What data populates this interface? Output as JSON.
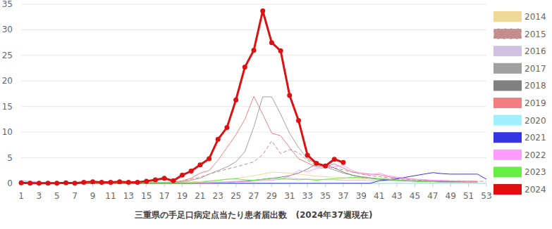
{
  "chart_data": {
    "type": "line",
    "title": "三重県の手足口病定点当たり患者届出数　(2024年37週現在)",
    "x": [
      1,
      2,
      3,
      4,
      5,
      6,
      7,
      8,
      9,
      10,
      11,
      12,
      13,
      14,
      15,
      16,
      17,
      18,
      19,
      20,
      21,
      22,
      23,
      24,
      25,
      26,
      27,
      28,
      29,
      30,
      31,
      32,
      33,
      34,
      35,
      36,
      37,
      38,
      39,
      40,
      41,
      42,
      43,
      44,
      45,
      46,
      47,
      48,
      49,
      50,
      51,
      52,
      53
    ],
    "xlim": [
      1,
      53
    ],
    "xticks": [
      1,
      3,
      5,
      7,
      9,
      11,
      13,
      15,
      17,
      19,
      21,
      23,
      25,
      27,
      29,
      31,
      33,
      35,
      37,
      39,
      41,
      43,
      45,
      47,
      49,
      51,
      53
    ],
    "ylim": [
      0,
      35
    ],
    "yticks": [
      0,
      5,
      10,
      15,
      20,
      25,
      30,
      35
    ],
    "grid": true,
    "legend": "right",
    "series": [
      {
        "name": "2014",
        "color": "#f0d898",
        "values": [
          0.2,
          0.2,
          0.1,
          0.1,
          0.1,
          0.1,
          0.1,
          0.1,
          0.1,
          0.1,
          0.1,
          0.1,
          0.1,
          0.1,
          0.1,
          0.2,
          0.2,
          0.2,
          0.3,
          0.3,
          0.4,
          0.5,
          0.6,
          0.8,
          1.0,
          1.2,
          1.5,
          1.8,
          2.2,
          2.1,
          2.0,
          1.8,
          1.6,
          1.4,
          1.3,
          1.2,
          1.1,
          1.0,
          0.9,
          0.8,
          0.7,
          0.6,
          0.6,
          0.5,
          0.5,
          0.4,
          0.4,
          0.4,
          0.3,
          0.3,
          0.3,
          0.3,
          null
        ]
      },
      {
        "name": "2015",
        "color": "#c48e8e",
        "line_style": "dashed",
        "values": [
          0.2,
          0.2,
          0.1,
          0.1,
          0.1,
          0.1,
          0.1,
          0.1,
          0.1,
          0.1,
          0.1,
          0.1,
          0.1,
          0.1,
          0.2,
          0.2,
          0.2,
          0.3,
          0.5,
          0.8,
          1.2,
          1.8,
          2.3,
          2.8,
          3.2,
          3.7,
          4.2,
          5.6,
          8.3,
          5.8,
          6.6,
          6.0,
          4.5,
          3.5,
          3.3,
          3.0,
          2.6,
          2.2,
          1.8,
          1.5,
          1.3,
          1.1,
          0.9,
          0.8,
          0.7,
          0.6,
          0.6,
          0.5,
          0.5,
          0.5,
          0.4,
          0.4,
          0.4
        ]
      },
      {
        "name": "2016",
        "color": "#d2c0e2",
        "values": [
          0.3,
          0.3,
          0.2,
          0.2,
          0.2,
          0.2,
          0.2,
          0.1,
          0.1,
          0.1,
          0.1,
          0.1,
          0.1,
          0.1,
          0.1,
          0.1,
          0.1,
          0.1,
          0.1,
          0.1,
          0.2,
          0.2,
          0.3,
          0.3,
          0.4,
          0.5,
          0.6,
          0.7,
          0.8,
          0.9,
          1.0,
          0.9,
          0.8,
          0.8,
          0.7,
          0.7,
          0.6,
          0.6,
          0.6,
          0.5,
          0.5,
          0.5,
          0.5,
          0.4,
          0.4,
          0.4,
          0.4,
          0.3,
          0.3,
          0.3,
          0.3,
          0.3,
          null
        ]
      },
      {
        "name": "2017",
        "color": "#a0a0a0",
        "values": [
          0.1,
          0.1,
          0.1,
          0.1,
          0.1,
          0.1,
          0.1,
          0.1,
          0.1,
          0.1,
          0.1,
          0.1,
          0.1,
          0.1,
          0.1,
          0.1,
          0.1,
          0.1,
          0.3,
          0.6,
          1.0,
          1.8,
          2.5,
          3.2,
          4.2,
          6.2,
          11.0,
          16.9,
          16.9,
          13.5,
          9.8,
          7.0,
          4.8,
          3.8,
          3.2,
          2.6,
          2.0,
          1.6,
          1.3,
          1.1,
          0.9,
          0.8,
          0.7,
          0.6,
          0.5,
          0.5,
          0.4,
          0.4,
          0.3,
          0.3,
          0.2,
          0.2,
          null
        ]
      },
      {
        "name": "2018",
        "color": "#808080",
        "values": [
          0.1,
          0.1,
          0.1,
          0.1,
          0.1,
          0.1,
          0.1,
          0.1,
          0.1,
          0.1,
          0.1,
          0.1,
          0.1,
          0.1,
          0.1,
          0.1,
          0.1,
          0.1,
          0.1,
          0.1,
          0.1,
          0.1,
          0.2,
          0.2,
          0.3,
          0.4,
          0.6,
          0.8,
          1.0,
          1.2,
          1.5,
          2.0,
          2.8,
          3.8,
          3.6,
          3.0,
          2.2,
          1.6,
          1.2,
          1.0,
          0.8,
          0.7,
          0.6,
          0.5,
          0.5,
          0.4,
          0.4,
          0.3,
          0.3,
          0.3,
          0.2,
          0.2,
          null
        ]
      },
      {
        "name": "2019",
        "color": "#f28080",
        "values": [
          0.1,
          0.1,
          0.1,
          0.1,
          0.1,
          0.1,
          0.1,
          0.1,
          0.1,
          0.1,
          0.1,
          0.1,
          0.1,
          0.1,
          0.1,
          0.1,
          0.1,
          0.2,
          0.5,
          1.0,
          2.0,
          2.5,
          4.5,
          7.0,
          9.5,
          12.5,
          17.0,
          13.5,
          9.8,
          9.3,
          7.0,
          4.8,
          4.0,
          3.2,
          3.2,
          3.8,
          3.0,
          2.2,
          2.0,
          1.8,
          1.7,
          1.3,
          1.1,
          0.9,
          0.8,
          0.7,
          0.6,
          0.5,
          0.5,
          0.4,
          0.4,
          0.3,
          null
        ]
      },
      {
        "name": "2020",
        "color": "#a0f0ff",
        "values": [
          0.3,
          0.3,
          0.2,
          0.2,
          0.2,
          0.1,
          0.1,
          0.1,
          0.1,
          0.1,
          0,
          0,
          0,
          0,
          0,
          0,
          0,
          0,
          0,
          0,
          0,
          0,
          0,
          0,
          0,
          0,
          0,
          0,
          0,
          0,
          0,
          0,
          0,
          0,
          0,
          0,
          0,
          0,
          0,
          0,
          0,
          0,
          0,
          0,
          0,
          0,
          0,
          0,
          0,
          0,
          0,
          0,
          0
        ]
      },
      {
        "name": "2021",
        "color": "#3434e6",
        "values": [
          0,
          0,
          0,
          0,
          0,
          0,
          0,
          0,
          0,
          0,
          0,
          0,
          0,
          0,
          0,
          0,
          0,
          0,
          0,
          0,
          0,
          0,
          0,
          0,
          0,
          0,
          0,
          0,
          0,
          0,
          0,
          0,
          0,
          0,
          0,
          0,
          0,
          0,
          0,
          0,
          0.5,
          0.7,
          0.9,
          1.2,
          1.5,
          1.8,
          2.1,
          1.9,
          1.8,
          1.8,
          1.8,
          1.8,
          0.8
        ]
      },
      {
        "name": "2022",
        "color": "#ff9cff",
        "values": [
          0.6,
          0.4,
          0.2,
          0.1,
          0.1,
          0.1,
          0.1,
          0.1,
          0.1,
          0.1,
          0.1,
          0.1,
          0.1,
          0.1,
          0.1,
          0.1,
          0.1,
          0.1,
          0.1,
          0.1,
          0.1,
          0.1,
          0.2,
          0.2,
          0.3,
          0.3,
          0.4,
          0.5,
          0.6,
          0.8,
          1.4,
          2.5,
          2.3,
          2.9,
          3.0,
          3.3,
          3.5,
          2.5,
          1.9,
          1.6,
          2.0,
          1.5,
          1.2,
          1.0,
          0.8,
          0.7,
          0.6,
          0.6,
          0.5,
          0.5,
          0.5,
          0.5,
          null
        ]
      },
      {
        "name": "2023",
        "color": "#66ee44",
        "values": [
          0.1,
          0.1,
          0.1,
          0.1,
          0.1,
          0.1,
          0.1,
          0.1,
          0.1,
          0.1,
          0.1,
          0.1,
          0.1,
          0.1,
          0.1,
          0.1,
          0.1,
          0.1,
          0.1,
          0.1,
          0.2,
          0.4,
          0.6,
          0.8,
          0.9,
          0.7,
          0.6,
          0.8,
          1.0,
          0.9,
          0.8,
          0.7,
          0.8,
          0.6,
          0.8,
          0.9,
          1.0,
          1.2,
          1.1,
          1.0,
          0.9,
          0.8,
          0.6,
          0.5,
          0.4,
          0.3,
          0.3,
          0.2,
          0.2,
          0.2,
          0.2,
          0.2,
          null
        ]
      },
      {
        "name": "2024",
        "color": "#dd1111",
        "marker": "circle",
        "values": [
          0.1,
          0.05,
          0.05,
          0.05,
          0.05,
          0.1,
          0.05,
          0.2,
          0.3,
          0.2,
          0.2,
          0.3,
          0.2,
          0.2,
          0.4,
          0.7,
          1.0,
          0.5,
          1.6,
          2.4,
          3.6,
          4.8,
          8.6,
          10.9,
          16.3,
          22.7,
          26.0,
          33.7,
          27.5,
          25.9,
          17.2,
          12.3,
          5.5,
          3.9,
          3.4,
          4.7,
          4.1,
          null,
          null,
          null,
          null,
          null,
          null,
          null,
          null,
          null,
          null,
          null,
          null,
          null,
          null,
          null,
          null
        ]
      }
    ]
  }
}
